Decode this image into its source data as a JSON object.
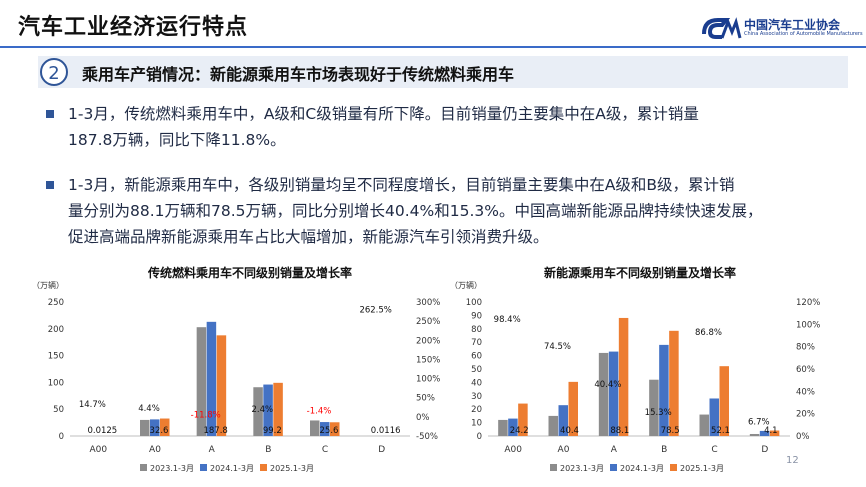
{
  "header": {
    "title": "汽车工业经济运行特点",
    "logo_cn": "中国汽车工业协会",
    "logo_en": "China Association of Automobile Manufacturers"
  },
  "section": {
    "number": "2",
    "text": "乘用车产销情况：新能源乘用车市场表现好于传统燃料乘用车"
  },
  "bullets": [
    {
      "lines": [
        "1-3月，传统燃料乘用车中，A级和C级销量有所下降。目前销量仍主要集中在A级，累计销量",
        "187.8万辆，同比下降11.8%。"
      ]
    },
    {
      "lines": [
        "1-3月，新能源乘用车中，各级别销量均呈不同程度增长，目前销量主要集中在A级和B级，累计销",
        "量分别为88.1万辆和78.5万辆，同比分别增长40.4%和15.3%。中国高端新能源品牌持续快速发展，",
        "促进高端品牌新能源乘用车占比大幅增加，新能源汽车引领消费升级。"
      ]
    }
  ],
  "page_number": "12",
  "colors": {
    "s2023": "#8c8c8c",
    "s2024": "#4472c4",
    "s2025": "#ed7d31",
    "negative": "#ff0000",
    "accent": "#2f5597"
  },
  "chart_data": [
    {
      "type": "bar",
      "title": "传统燃料乘用车不同级别销量及增长率",
      "ylabel": "（万辆）",
      "ylim": [
        0,
        250
      ],
      "yticks": [
        "0",
        "50",
        "100",
        "150",
        "200",
        "250"
      ],
      "y2lim": [
        -50,
        300
      ],
      "y2ticks": [
        "-50%",
        "0%",
        "50%",
        "100%",
        "150%",
        "200%",
        "250%",
        "300%"
      ],
      "categories": [
        "A00",
        "A0",
        "A",
        "B",
        "C",
        "D"
      ],
      "series": [
        {
          "name": "2023.1-3月",
          "values": [
            0.01,
            30,
            203,
            91,
            29,
            0.01
          ]
        },
        {
          "name": "2024.1-3月",
          "values": [
            0.01,
            31,
            213,
            96,
            26,
            0.01
          ]
        },
        {
          "name": "2025.1-3月",
          "values": [
            0.0125,
            32.6,
            187.8,
            99.2,
            25.6,
            0.0116
          ]
        }
      ],
      "value_labels": [
        "0.0125",
        "32.6",
        "187.8",
        "99.2",
        "25.6",
        "0.0116"
      ],
      "growth_labels": [
        "14.7%",
        "4.4%",
        "-11.8%",
        "2.4%",
        "-1.4%",
        "262.5%"
      ],
      "growth_values": [
        14.7,
        4.4,
        -11.8,
        2.4,
        -1.4,
        262.5
      ]
    },
    {
      "type": "bar",
      "title": "新能源乘用车不同级别销量及增长率",
      "ylabel": "（万辆）",
      "ylim": [
        0,
        100
      ],
      "yticks": [
        "0",
        "10",
        "20",
        "30",
        "40",
        "50",
        "60",
        "70",
        "80",
        "90",
        "100"
      ],
      "y2lim": [
        0,
        120
      ],
      "y2ticks": [
        "0%",
        "20%",
        "40%",
        "60%",
        "80%",
        "100%",
        "120%"
      ],
      "categories": [
        "A00",
        "A0",
        "A",
        "B",
        "C",
        "D"
      ],
      "series": [
        {
          "name": "2023.1-3月",
          "values": [
            12,
            15,
            62,
            42,
            16,
            1.5
          ]
        },
        {
          "name": "2024.1-3月",
          "values": [
            13,
            23,
            63,
            68,
            28,
            3.8
          ]
        },
        {
          "name": "2025.1-3月",
          "values": [
            24.2,
            40.4,
            88.1,
            78.5,
            52.1,
            4.1
          ]
        }
      ],
      "value_labels": [
        "24.2",
        "40.4",
        "88.1",
        "78.5",
        "52.1",
        "4.1"
      ],
      "growth_labels": [
        "98.4%",
        "74.5%",
        "40.4%",
        "15.3%",
        "86.8%",
        "6.7%"
      ],
      "growth_values": [
        98.4,
        74.5,
        40.4,
        15.3,
        86.8,
        6.7
      ]
    }
  ]
}
